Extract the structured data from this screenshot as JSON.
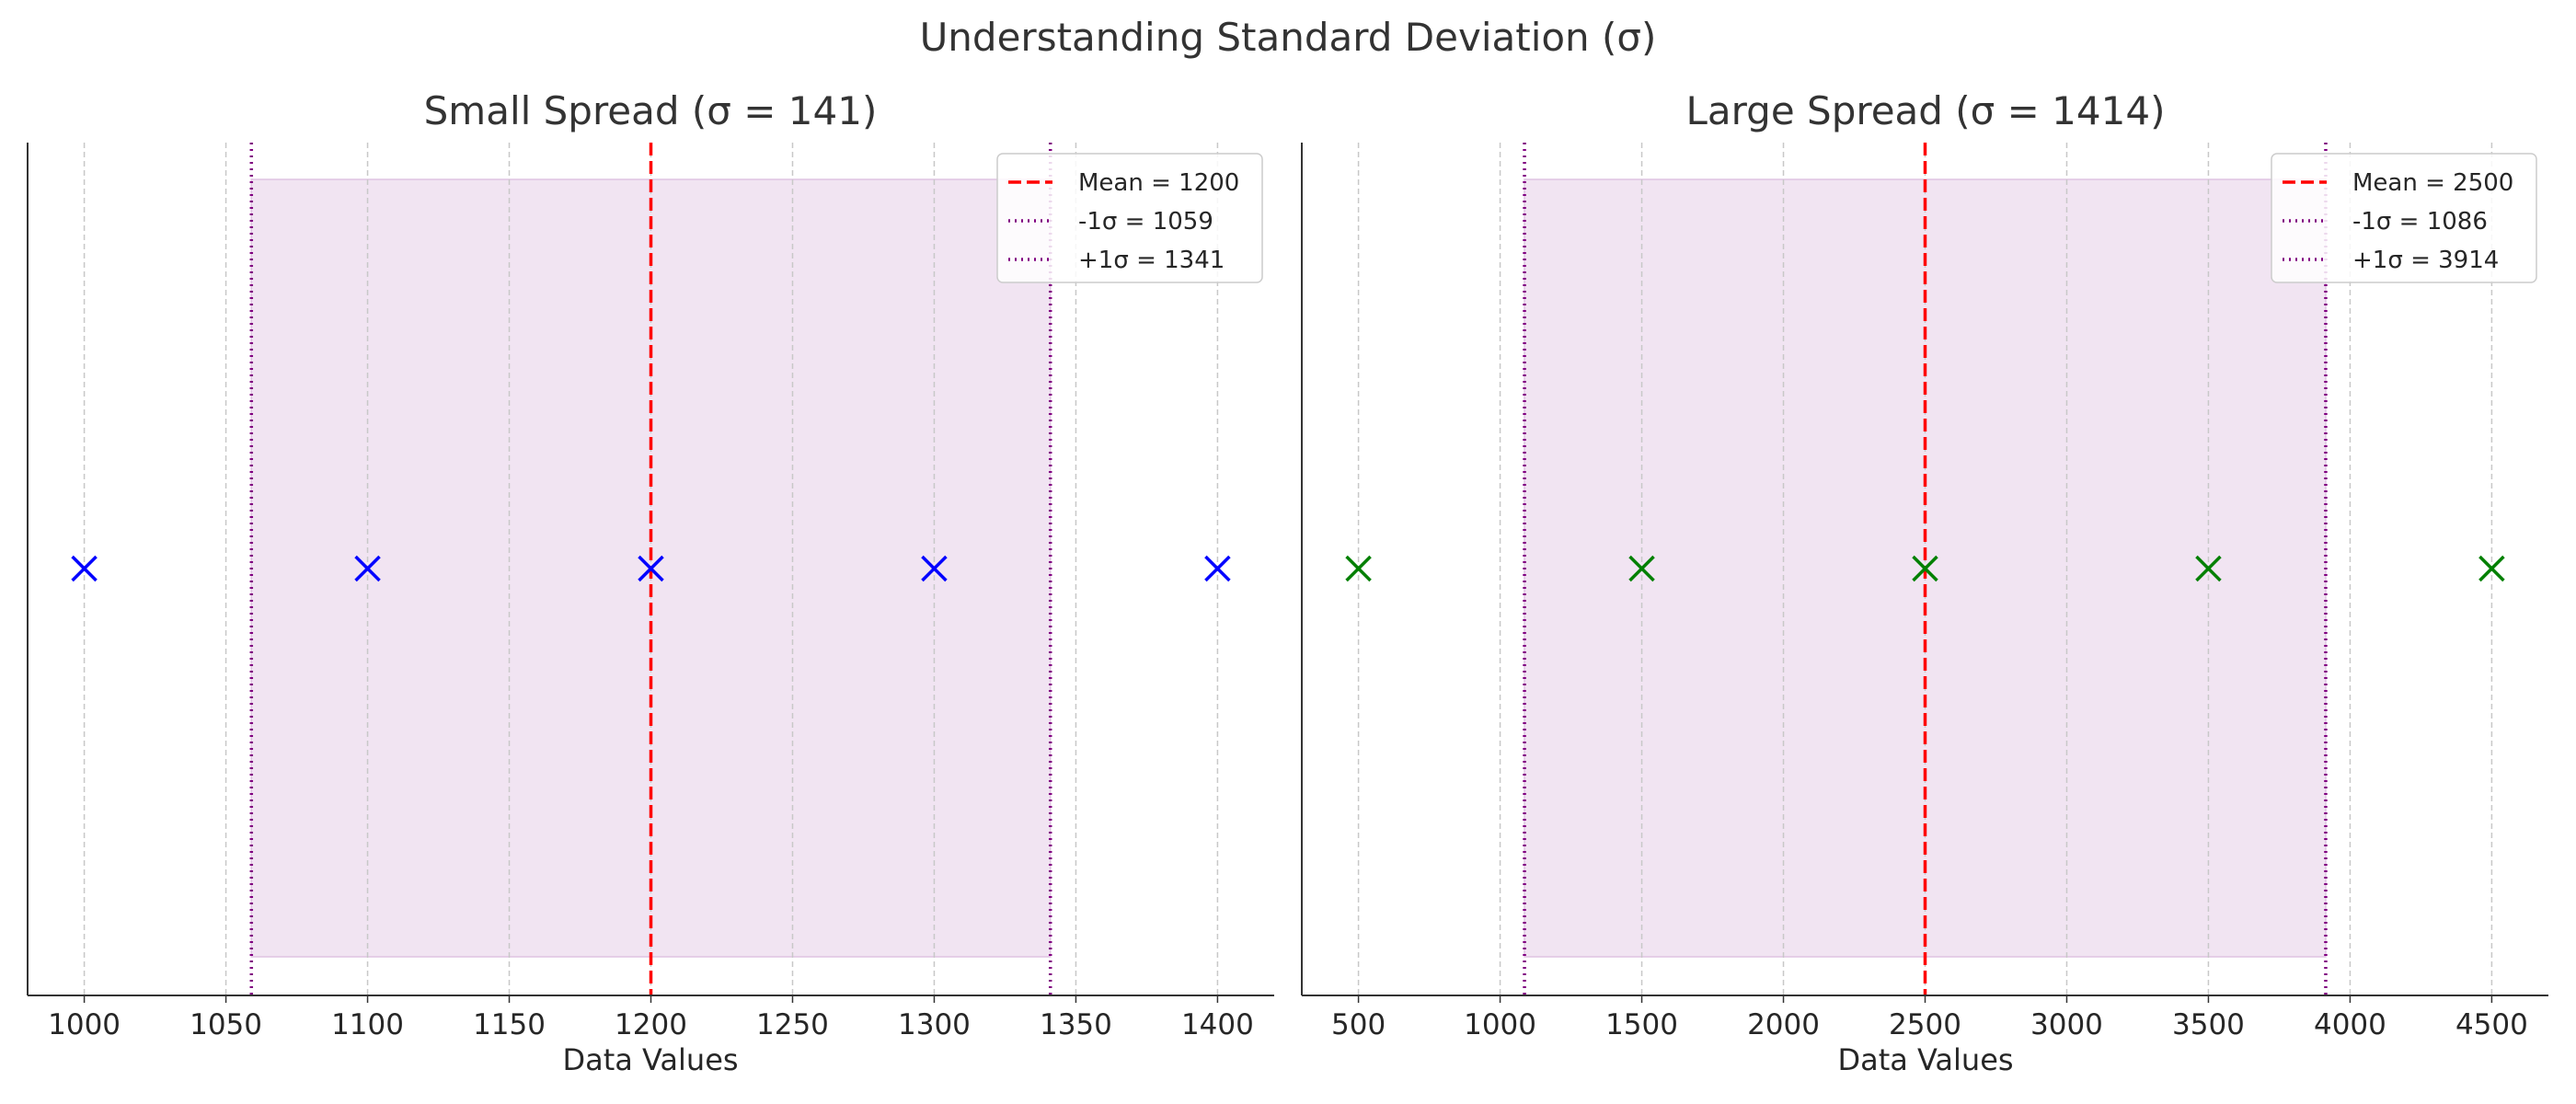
{
  "figure_title": "Understanding Standard Deviation (σ)",
  "chart_data": [
    {
      "type": "scatter",
      "title": "Small Spread (σ = 141)",
      "xlabel": "Data Values",
      "ylabel": "",
      "xlim": [
        980,
        1420
      ],
      "xticks": [
        "1000",
        "1050",
        "1100",
        "1150",
        "1200",
        "1250",
        "1300",
        "1350",
        "1400"
      ],
      "grid": "vertical dashed",
      "legend_position": "top-right",
      "marker": "x",
      "marker_color": "#0000ff",
      "x": [
        1000,
        1100,
        1200,
        1300,
        1400
      ],
      "mean": 1200,
      "minus_sigma": 1059,
      "plus_sigma": 1341,
      "band_color": "#dfc3e2",
      "legend": [
        "Mean = 1200",
        "-1σ = 1059",
        "+1σ = 1341"
      ],
      "line_colors": {
        "mean": "#ff0000",
        "sigma": "#800080"
      }
    },
    {
      "type": "scatter",
      "title": "Large Spread (σ = 1414)",
      "xlabel": "Data Values",
      "ylabel": "",
      "xlim": [
        300,
        4700
      ],
      "xticks": [
        "500",
        "1000",
        "1500",
        "2000",
        "2500",
        "3000",
        "3500",
        "4000",
        "4500"
      ],
      "grid": "vertical dashed",
      "legend_position": "top-right",
      "marker": "x",
      "marker_color": "#008000",
      "x": [
        500,
        1500,
        2500,
        3500,
        4500
      ],
      "mean": 2500,
      "minus_sigma": 1086,
      "plus_sigma": 3914,
      "band_color": "#dfc3e2",
      "legend": [
        "Mean = 2500",
        "-1σ = 1086",
        "+1σ = 3914"
      ],
      "line_colors": {
        "mean": "#ff0000",
        "sigma": "#800080"
      }
    }
  ]
}
